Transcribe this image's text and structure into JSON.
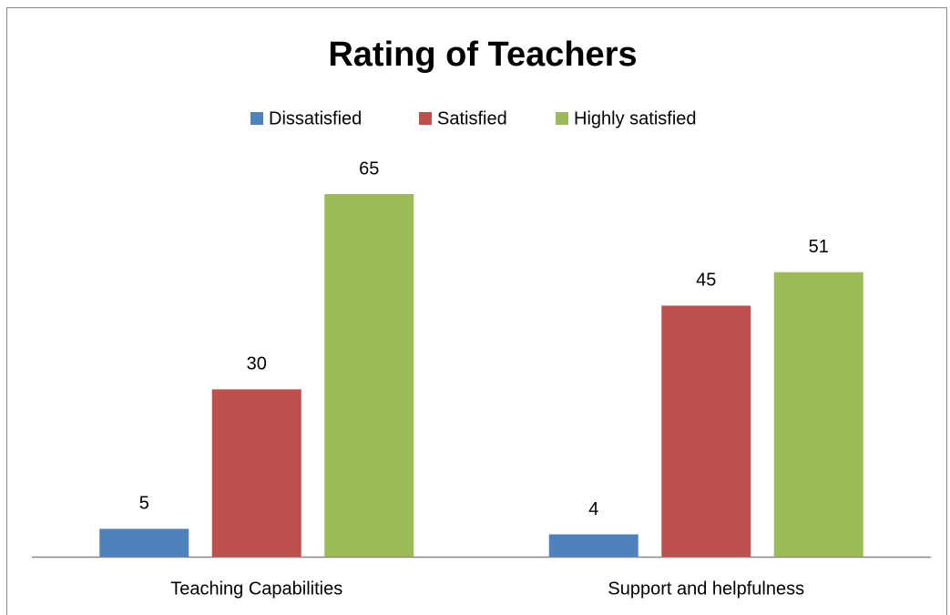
{
  "chart_data": {
    "type": "bar",
    "title": "Rating of Teachers",
    "categories": [
      "Teaching Capabilities",
      "Support and helpfulness"
    ],
    "series": [
      {
        "name": "Dissatisfied",
        "color": "#4f81bd",
        "values": [
          5,
          4
        ]
      },
      {
        "name": "Satisfied",
        "color": "#c0504d",
        "values": [
          30,
          45
        ]
      },
      {
        "name": "Highly satisfied",
        "color": "#9bbb59",
        "values": [
          65,
          51
        ]
      }
    ],
    "legend": "top"
  }
}
